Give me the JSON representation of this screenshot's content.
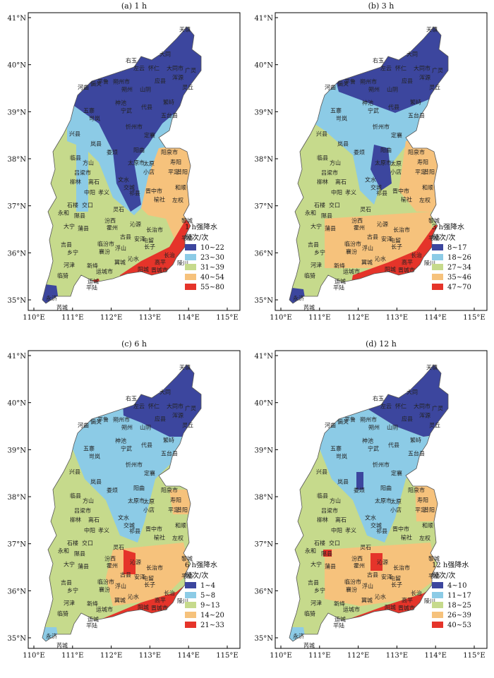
{
  "axes": {
    "lon_ticks": [
      {
        "value": 110,
        "label": "110°E"
      },
      {
        "value": 111,
        "label": "111°E"
      },
      {
        "value": 112,
        "label": "112°E"
      },
      {
        "value": 113,
        "label": "113°E"
      },
      {
        "value": 114,
        "label": "114°E"
      },
      {
        "value": 115,
        "label": "115°E"
      }
    ],
    "lat_ticks": [
      {
        "value": 35,
        "label": "35°N"
      },
      {
        "value": 36,
        "label": "36°N"
      },
      {
        "value": 37,
        "label": "37°N"
      },
      {
        "value": 38,
        "label": "38°N"
      },
      {
        "value": 39,
        "label": "39°N"
      },
      {
        "value": 40,
        "label": "40°N"
      },
      {
        "value": 41,
        "label": "41°N"
      }
    ]
  },
  "place_names": [
    "天镇",
    "大同",
    "右玉",
    "左云",
    "怀仁",
    "大同市",
    "浑源",
    "广灵",
    "河曲",
    "偏关",
    "平鲁",
    "朔州市",
    "应县",
    "山阴",
    "灵丘",
    "朔州",
    "五寨",
    "神池",
    "宁武",
    "代县",
    "繁峙",
    "五台县",
    "岢岚",
    "忻州市",
    "定襄",
    "兴县",
    "岚县",
    "娄烦",
    "阳曲",
    "临县",
    "方山",
    "阳泉市",
    "太原市",
    "寿阳",
    "平定",
    "昔阳",
    "吕梁市",
    "太原",
    "小店",
    "柳林",
    "离石",
    "文水",
    "交城",
    "祁县",
    "中阳",
    "孝义",
    "和顺",
    "晋中市",
    "榆社",
    "左权",
    "石楼",
    "交口",
    "灵石",
    "汾西",
    "霍州",
    "沁源",
    "黎城",
    "永和",
    "隰县",
    "大宁",
    "蒲县",
    "长治市",
    "古县",
    "安泽",
    "屯留",
    "长子",
    "吉县",
    "乡宁",
    "临汾市",
    "襄汾",
    "浮山",
    "沁水",
    "高平",
    "陵川",
    "河津",
    "新绛",
    "翼城",
    "阳城",
    "晋城市",
    "临猗",
    "运城市",
    "运城",
    "平陆",
    "永济",
    "芮城",
    "平顺",
    "长治"
  ],
  "panels": [
    {
      "title": "(a) 1 h",
      "legend_title": [
        "1 h强降水",
        "频次/次"
      ],
      "legend": [
        {
          "label": "10~22",
          "color": "#3c469e"
        },
        {
          "label": "23~30",
          "color": "#8ccbe6"
        },
        {
          "label": "31~39",
          "color": "#c6da8c"
        },
        {
          "label": "40~54",
          "color": "#f6c27c"
        },
        {
          "label": "55~80",
          "color": "#e5342a"
        }
      ]
    },
    {
      "title": "(b) 3 h",
      "legend_title": [
        "3 h强降水",
        "频次/次"
      ],
      "legend": [
        {
          "label": "8~17",
          "color": "#3c469e"
        },
        {
          "label": "18~26",
          "color": "#8ccbe6"
        },
        {
          "label": "27~34",
          "color": "#c6da8c"
        },
        {
          "label": "35~46",
          "color": "#f6c27c"
        },
        {
          "label": "47~70",
          "color": "#e5342a"
        }
      ]
    },
    {
      "title": "(c) 6 h",
      "legend_title": [
        "6 h强降水",
        "频次/次"
      ],
      "legend": [
        {
          "label": "1~4",
          "color": "#3c469e"
        },
        {
          "label": "5~8",
          "color": "#8ccbe6"
        },
        {
          "label": "9~13",
          "color": "#c6da8c"
        },
        {
          "label": "14~20",
          "color": "#f6c27c"
        },
        {
          "label": "21~33",
          "color": "#e5342a"
        }
      ]
    },
    {
      "title": "(d) 12 h",
      "legend_title": [
        "12 h强降水",
        "频次/次"
      ],
      "legend": [
        {
          "label": "4~10",
          "color": "#3c469e"
        },
        {
          "label": "11~17",
          "color": "#8ccbe6"
        },
        {
          "label": "18~25",
          "color": "#c6da8c"
        },
        {
          "label": "26~39",
          "color": "#f6c27c"
        },
        {
          "label": "40~53",
          "color": "#e5342a"
        }
      ]
    }
  ]
}
